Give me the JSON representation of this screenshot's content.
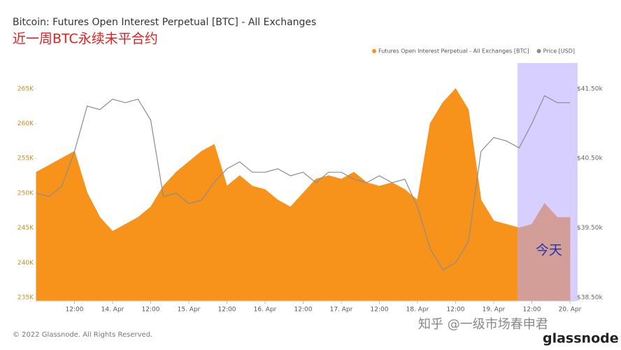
{
  "chart_data": {
    "type": "area-line",
    "title": "Bitcoin: Futures Open Interest Perpetual [BTC] - All Exchanges",
    "subtitle": "近一周BTC永续未平合约",
    "annotation": "今天",
    "footer": "© 2022 Glassnode. All Rights Reserved.",
    "watermark": "知乎 @一级市场春申君",
    "brand": "glassnode",
    "x": [
      "13. Apr 00:00",
      "13. Apr 04:00",
      "13. Apr 08:00",
      "13. Apr 12:00",
      "13. Apr 16:00",
      "13. Apr 20:00",
      "14. Apr 00:00",
      "14. Apr 04:00",
      "14. Apr 08:00",
      "14. Apr 12:00",
      "14. Apr 16:00",
      "14. Apr 20:00",
      "15. Apr 00:00",
      "15. Apr 04:00",
      "15. Apr 08:00",
      "15. Apr 12:00",
      "15. Apr 16:00",
      "15. Apr 20:00",
      "16. Apr 00:00",
      "16. Apr 04:00",
      "16. Apr 08:00",
      "16. Apr 12:00",
      "16. Apr 16:00",
      "16. Apr 20:00",
      "17. Apr 00:00",
      "17. Apr 04:00",
      "17. Apr 08:00",
      "17. Apr 12:00",
      "17. Apr 16:00",
      "17. Apr 20:00",
      "18. Apr 00:00",
      "18. Apr 04:00",
      "18. Apr 08:00",
      "18. Apr 12:00",
      "18. Apr 16:00",
      "18. Apr 20:00",
      "19. Apr 00:00",
      "19. Apr 04:00",
      "19. Apr 08:00",
      "19. Apr 12:00",
      "19. Apr 16:00",
      "19. Apr 20:00",
      "20. Apr 00:00"
    ],
    "series": [
      {
        "name": "Futures Open Interest Perpetual - All Exchanges [BTC]",
        "color": "#f7931a",
        "axis": "y",
        "values": [
          253000,
          254000,
          255000,
          256000,
          250000,
          246500,
          244500,
          245500,
          246500,
          248000,
          251000,
          253000,
          254500,
          256000,
          257000,
          251000,
          252500,
          251000,
          250500,
          249000,
          248000,
          250000,
          252000,
          252500,
          252000,
          253000,
          251500,
          251000,
          251500,
          250500,
          249000,
          260000,
          263000,
          265000,
          262000,
          249000,
          246000,
          245500,
          245000,
          245500,
          248500,
          246500,
          246500
        ]
      },
      {
        "name": "Price [USD]",
        "color": "#8c8c8c",
        "axis": "y2",
        "values": [
          40000,
          39950,
          40100,
          40600,
          41250,
          41200,
          41350,
          41300,
          41350,
          41050,
          39950,
          40000,
          39850,
          39900,
          40150,
          40350,
          40450,
          40300,
          40300,
          40350,
          40250,
          40300,
          40150,
          40300,
          40300,
          40200,
          40150,
          40250,
          40150,
          40200,
          39800,
          39200,
          38900,
          39000,
          39300,
          40600,
          40800,
          40750,
          40650,
          41000,
          41400,
          41300,
          41300
        ]
      }
    ],
    "ylim": [
      234500,
      268700
    ],
    "yticks": [
      {
        "value": 235000,
        "label": "235K"
      },
      {
        "value": 240000,
        "label": "240K"
      },
      {
        "value": 245000,
        "label": "245K"
      },
      {
        "value": 250000,
        "label": "250K"
      },
      {
        "value": 255000,
        "label": "255K"
      },
      {
        "value": 260000,
        "label": "260K"
      },
      {
        "value": 265000,
        "label": "265K"
      }
    ],
    "y2lim": [
      38450,
      41870
    ],
    "y2ticks": [
      {
        "value": 38500,
        "label": "$38.50k"
      },
      {
        "value": 39500,
        "label": "$39.50k"
      },
      {
        "value": 40500,
        "label": "$40.50k"
      },
      {
        "value": 41500,
        "label": "$41.50k"
      }
    ],
    "xticks": [
      {
        "value": "13. Apr 12:00",
        "label": "12:00"
      },
      {
        "value": "14. Apr 00:00",
        "label": "14. Apr"
      },
      {
        "value": "14. Apr 12:00",
        "label": "12:00"
      },
      {
        "value": "15. Apr 00:00",
        "label": "15. Apr"
      },
      {
        "value": "15. Apr 12:00",
        "label": "12:00"
      },
      {
        "value": "16. Apr 00:00",
        "label": "16. Apr"
      },
      {
        "value": "16. Apr 12:00",
        "label": "12:00"
      },
      {
        "value": "17. Apr 00:00",
        "label": "17. Apr"
      },
      {
        "value": "17. Apr 12:00",
        "label": "12:00"
      },
      {
        "value": "18. Apr 00:00",
        "label": "18. Apr"
      },
      {
        "value": "18. Apr 12:00",
        "label": "12:00"
      },
      {
        "value": "19. Apr 00:00",
        "label": "19. Apr"
      },
      {
        "value": "19. Apr 12:00",
        "label": "12:00"
      },
      {
        "value": "20. Apr 00:00",
        "label": "20. Apr"
      }
    ],
    "legend": "top-right",
    "grid": false
  }
}
